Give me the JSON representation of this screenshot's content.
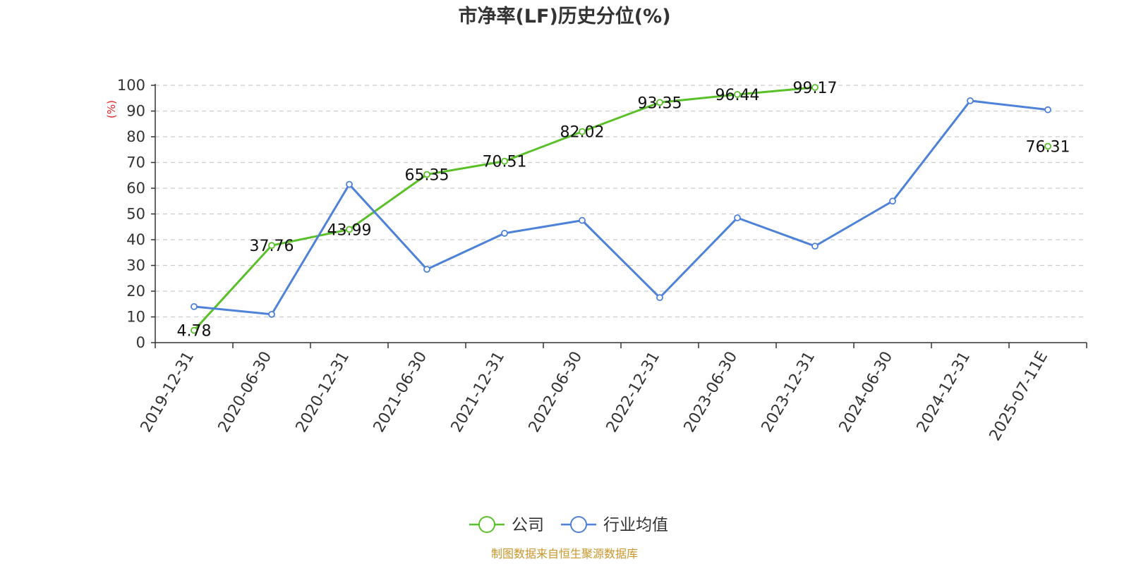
{
  "chart_data": {
    "type": "line",
    "title": "市净率(LF)历史分位(%)",
    "y_unit": "(%)",
    "ylim": [
      0,
      100
    ],
    "y_ticks": [
      0,
      10,
      20,
      30,
      40,
      50,
      60,
      70,
      80,
      90,
      100
    ],
    "grid": true,
    "legend_position": "bottom",
    "categories": [
      "2019-12-31",
      "2020-06-30",
      "2020-12-31",
      "2021-06-30",
      "2021-12-31",
      "2022-06-30",
      "2022-12-31",
      "2023-06-30",
      "2023-12-31",
      "2024-06-30",
      "2024-12-31",
      "2025-07-11E"
    ],
    "series": [
      {
        "name": "公司",
        "color": "#5ac02a",
        "values": [
          4.78,
          37.76,
          43.99,
          65.35,
          70.51,
          82.02,
          93.35,
          96.44,
          99.17,
          null,
          null,
          76.31
        ],
        "labels": [
          "4.78",
          "37.76",
          "43.99",
          "65.35",
          "70.51",
          "82.02",
          "93.35",
          "96.44",
          "99.17",
          null,
          null,
          "76.31"
        ]
      },
      {
        "name": "行业均值",
        "color": "#4e82d8",
        "values": [
          14.0,
          11.0,
          61.5,
          28.5,
          42.5,
          47.5,
          17.5,
          48.5,
          37.5,
          55.0,
          94.0,
          90.5
        ]
      }
    ],
    "source": "制图数据来自恒生聚源数据库",
    "colors": {
      "unit": "#e02020",
      "source": "#c9962a",
      "axis": "#333333",
      "grid": "#cccccc"
    }
  }
}
